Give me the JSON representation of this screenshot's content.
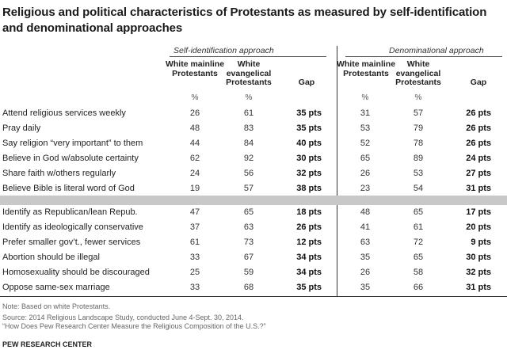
{
  "title": "Religious and political characteristics of Protestants as measured by self-identification and denominational approaches",
  "groups": {
    "self": "Self-identification approach",
    "denom": "Denominational approach"
  },
  "columns": {
    "mainline": "White mainline Protestants",
    "evangelical": "White evangelical Protestants",
    "gap": "Gap",
    "pct": "%"
  },
  "rows_religious": [
    {
      "label": "Attend religious services weekly",
      "self_main": "26",
      "self_evan": "61",
      "self_gap": "35 pts",
      "den_main": "31",
      "den_evan": "57",
      "den_gap": "26 pts"
    },
    {
      "label": "Pray daily",
      "self_main": "48",
      "self_evan": "83",
      "self_gap": "35 pts",
      "den_main": "53",
      "den_evan": "79",
      "den_gap": "26 pts"
    },
    {
      "label": "Say religion “very important” to them",
      "self_main": "44",
      "self_evan": "84",
      "self_gap": "40 pts",
      "den_main": "52",
      "den_evan": "78",
      "den_gap": "26 pts"
    },
    {
      "label": "Believe in God w/absolute certainty",
      "self_main": "62",
      "self_evan": "92",
      "self_gap": "30 pts",
      "den_main": "65",
      "den_evan": "89",
      "den_gap": "24 pts"
    },
    {
      "label": "Share faith w/others regularly",
      "self_main": "24",
      "self_evan": "56",
      "self_gap": "32 pts",
      "den_main": "26",
      "den_evan": "53",
      "den_gap": "27 pts"
    },
    {
      "label": "Believe Bible is literal word of God",
      "self_main": "19",
      "self_evan": "57",
      "self_gap": "38 pts",
      "den_main": "23",
      "den_evan": "54",
      "den_gap": "31 pts"
    }
  ],
  "rows_political": [
    {
      "label": "Identify as Republican/lean Repub.",
      "self_main": "47",
      "self_evan": "65",
      "self_gap": "18 pts",
      "den_main": "48",
      "den_evan": "65",
      "den_gap": "17 pts"
    },
    {
      "label": "Identify as ideologically conservative",
      "self_main": "37",
      "self_evan": "63",
      "self_gap": "26 pts",
      "den_main": "41",
      "den_evan": "61",
      "den_gap": "20 pts"
    },
    {
      "label": "Prefer smaller gov’t., fewer services",
      "self_main": "61",
      "self_evan": "73",
      "self_gap": "12 pts",
      "den_main": "63",
      "den_evan": "72",
      "den_gap": "9 pts"
    },
    {
      "label": "Abortion should be illegal",
      "self_main": "33",
      "self_evan": "67",
      "self_gap": "34 pts",
      "den_main": "35",
      "den_evan": "65",
      "den_gap": "30 pts"
    },
    {
      "label": "Homosexuality should be discouraged",
      "self_main": "25",
      "self_evan": "59",
      "self_gap": "34 pts",
      "den_main": "26",
      "den_evan": "58",
      "den_gap": "32 pts"
    },
    {
      "label": "Oppose same-sex marriage",
      "self_main": "33",
      "self_evan": "68",
      "self_gap": "35 pts",
      "den_main": "35",
      "den_evan": "66",
      "den_gap": "31 pts"
    }
  ],
  "notes": {
    "note": "Note: Based on white Protestants.",
    "source": "Source: 2014 Religious Landscape Study, conducted June 4-Sept. 30, 2014.",
    "report": "“How Does Pew Research Center Measure the Religious Composition of the U.S.?”"
  },
  "org": "PEW RESEARCH CENTER"
}
